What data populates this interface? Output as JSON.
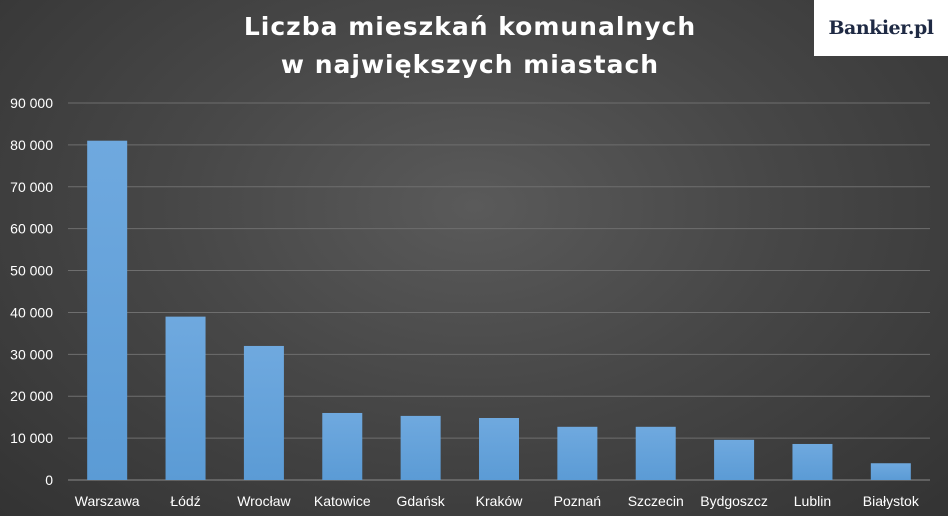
{
  "title_line1": "Liczba mieszkań komunalnych",
  "title_line2": "w największych miastach",
  "brand": "Bankier.pl",
  "colors": {
    "bar": "#5b9bd5",
    "grid": "#6e6e6e",
    "text": "#ffffff"
  },
  "chart_data": {
    "type": "bar",
    "title": "Liczba mieszkań komunalnych w największych miastach",
    "xlabel": "",
    "ylabel": "",
    "ylim": [
      0,
      90000
    ],
    "yticks": [
      0,
      10000,
      20000,
      30000,
      40000,
      50000,
      60000,
      70000,
      80000,
      90000
    ],
    "ytick_labels": [
      "0",
      "10 000",
      "20 000",
      "30 000",
      "40 000",
      "50 000",
      "60 000",
      "70 000",
      "80 000",
      "90 000"
    ],
    "grid": true,
    "categories": [
      "Warszawa",
      "Łódź",
      "Wrocław",
      "Katowice",
      "Gdańsk",
      "Kraków",
      "Poznań",
      "Szczecin",
      "Bydgoszcz",
      "Lublin",
      "Białystok"
    ],
    "values": [
      81000,
      39000,
      32000,
      16000,
      15300,
      14800,
      12700,
      12700,
      9600,
      8600,
      4000
    ]
  }
}
